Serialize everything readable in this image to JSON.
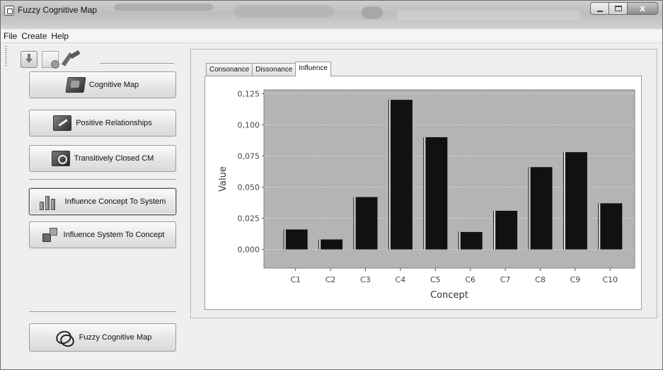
{
  "window": {
    "title": "Fuzzy Cognitive Map",
    "close_glyph": "x"
  },
  "menu": {
    "items": [
      "File",
      "Create",
      "Help"
    ]
  },
  "toolbar": {
    "icons": [
      "download-icon",
      "new-document-icon",
      "tools-icon"
    ]
  },
  "sidebar": {
    "buttons": [
      {
        "label": "Cognitive Map",
        "icon": "cognitive-map-icon"
      },
      {
        "label": "Positive Relationships",
        "icon": "positive-relationships-icon"
      },
      {
        "label": "Transitively Closed CM",
        "icon": "transitively-closed-icon"
      },
      {
        "label": "Influence Concept To System",
        "icon": "bar-chart-icon",
        "active": true
      },
      {
        "label": "Influence System To Concept",
        "icon": "cubes-icon"
      }
    ],
    "footer_button": {
      "label": "Fuzzy Cognitive Map",
      "icon": "fcm-logo-icon"
    }
  },
  "tabs": [
    {
      "label": "Consonance",
      "active": false
    },
    {
      "label": "Dissonance",
      "active": false
    },
    {
      "label": "Influence",
      "active": true
    }
  ],
  "chart_data": {
    "type": "bar",
    "categories": [
      "C1",
      "C2",
      "C3",
      "C4",
      "C5",
      "C6",
      "C7",
      "C8",
      "C9",
      "C10"
    ],
    "values": [
      0.016,
      0.008,
      0.042,
      0.12,
      0.09,
      0.014,
      0.031,
      0.066,
      0.078,
      0.037
    ],
    "xlabel": "Concept",
    "ylabel": "Value",
    "ylim": [
      -0.015,
      0.128
    ],
    "yticks": [
      0.0,
      0.025,
      0.05,
      0.075,
      0.1,
      0.125
    ],
    "ytick_labels": [
      "0,000",
      "0,025",
      "0,050",
      "0,075",
      "0,100",
      "0,125"
    ],
    "grid": true,
    "colors": {
      "plot_bg": "#b4b4b4",
      "bar": "#111111",
      "grid": "#d8d8d8"
    }
  }
}
